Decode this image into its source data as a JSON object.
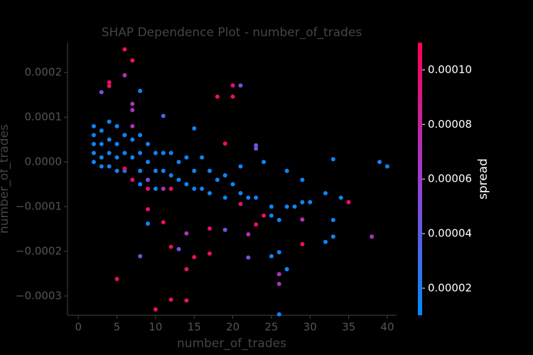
{
  "chart_data": {
    "type": "scatter",
    "title": "SHAP Dependence Plot - number_of_trades",
    "x_label": "number_of_trades",
    "y_label": "number_of_trades",
    "colorbar_label": "spread",
    "colormap": [
      "#008bfb",
      "#9b3fd0",
      "#ff0052"
    ],
    "xlim": [
      -1.4,
      41.2
    ],
    "ylim": [
      -0.000343,
      0.000267
    ],
    "clim": [
      1.01e-05,
      0.00011
    ],
    "xticks": [
      0,
      5,
      10,
      15,
      20,
      25,
      30,
      35,
      40
    ],
    "yticks": [
      {
        "value": 0.0002,
        "label": "0.0002"
      },
      {
        "value": 0.0001,
        "label": "0.0001"
      },
      {
        "value": 0,
        "label": "0.0000"
      },
      {
        "value": -0.0001,
        "label": "−0.0001"
      },
      {
        "value": -0.0002,
        "label": "−0.0002"
      },
      {
        "value": -0.0003,
        "label": "−0.0003"
      }
    ],
    "cticks": [
      {
        "value": 2e-05,
        "label": "0.00002"
      },
      {
        "value": 4e-05,
        "label": "0.00004"
      },
      {
        "value": 6e-05,
        "label": "0.00006"
      },
      {
        "value": 8e-05,
        "label": "0.00008"
      },
      {
        "value": 0.0001,
        "label": "0.00010"
      }
    ],
    "x": [
      6,
      7,
      6,
      4,
      4,
      3,
      8,
      7,
      11,
      7,
      18,
      20,
      21,
      20,
      15,
      19,
      23,
      23,
      33,
      39,
      40,
      2,
      2,
      2,
      2,
      2,
      3,
      3,
      3,
      3,
      4,
      4,
      4,
      4,
      5,
      5,
      5,
      5,
      6,
      6,
      6,
      6,
      7,
      7,
      7,
      7,
      8,
      8,
      8,
      8,
      9,
      9,
      9,
      9,
      10,
      10,
      10,
      11,
      11,
      11,
      12,
      12,
      12,
      13,
      13,
      14,
      14,
      15,
      15,
      16,
      16,
      17,
      17,
      18,
      19,
      19,
      20,
      21,
      21,
      22,
      23,
      24,
      24,
      25,
      25,
      26,
      27,
      27,
      28,
      29,
      29,
      30,
      32,
      33,
      34,
      35,
      5,
      8,
      9,
      9,
      11,
      12,
      13,
      10,
      12,
      14,
      14,
      14,
      15,
      17,
      17,
      19,
      22,
      22,
      25,
      26,
      26,
      26,
      26,
      27,
      29,
      29,
      32,
      33,
      38,
      23,
      21
    ],
    "values": [
      0.000252,
      0.000227,
      0.000194,
      0.000178,
      0.00017,
      0.000156,
      0.000159,
      0.00013,
      0.000103,
      0.000116,
      0.000146,
      0.000171,
      0.000171,
      0.000146,
      7.5e-05,
      4.1e-05,
      3.7e-05,
      3e-05,
      6e-06,
      0,
      -1e-05,
      8e-05,
      6e-05,
      4e-05,
      2e-05,
      0,
      7e-05,
      4e-05,
      1e-05,
      -1e-05,
      9e-05,
      5e-05,
      2e-05,
      -1e-05,
      8e-05,
      4e-05,
      1e-05,
      -2e-05,
      6e-05,
      2e-05,
      -2e-05,
      -1.5e-05,
      8e-05,
      5e-05,
      1e-05,
      -4e-05,
      6e-05,
      2e-05,
      -2e-05,
      -5e-05,
      4e-05,
      0,
      -4e-05,
      -6e-05,
      2e-05,
      -2e-05,
      -6e-05,
      2e-05,
      -2e-05,
      -6e-05,
      2e-05,
      -3e-05,
      -6e-05,
      0,
      -4e-05,
      1e-05,
      -5e-05,
      -2e-05,
      -6e-05,
      1e-05,
      -6e-05,
      -2e-05,
      -7e-05,
      -4e-05,
      -3e-05,
      -8e-05,
      -5e-05,
      -1e-05,
      -7e-05,
      -8e-05,
      -8e-05,
      -0.00012,
      0,
      -0.0001,
      -0.00012,
      -0.00013,
      -2e-05,
      -0.0001,
      -0.0001,
      -4e-05,
      -9e-05,
      -9e-05,
      -7e-05,
      -0.00013,
      -8e-05,
      -9e-05,
      -0.000262,
      -0.000211,
      -0.000138,
      -0.000106,
      -0.000135,
      -0.00019,
      -0.000195,
      -0.00033,
      -0.000308,
      -0.00031,
      -0.00024,
      -0.00016,
      -0.000213,
      -0.000205,
      -0.000149,
      -0.000152,
      -0.000162,
      -0.000214,
      -0.000211,
      -0.000202,
      -0.000251,
      -0.000273,
      -0.000341,
      -0.00024,
      -0.000184,
      -0.000129,
      -0.000179,
      -0.000167,
      -0.000167,
      -0.00014,
      -9.4e-05
    ],
    "color_values": [
      0.0001,
      0.0001,
      7e-05,
      0.0001,
      0.0001,
      5e-05,
      1.5e-05,
      7e-05,
      3e-05,
      7e-05,
      0.0001,
      0.0001,
      5e-05,
      0.0001,
      1.5e-05,
      0.0001,
      5e-05,
      5e-05,
      1.5e-05,
      2e-05,
      1.5e-05,
      1.5e-05,
      1.5e-05,
      1.5e-05,
      1.5e-05,
      1.5e-05,
      1.5e-05,
      1.5e-05,
      1.5e-05,
      1.5e-05,
      1.5e-05,
      1.5e-05,
      1.5e-05,
      1.5e-05,
      1.5e-05,
      1.5e-05,
      1.5e-05,
      1.5e-05,
      1.5e-05,
      1.5e-05,
      1.5e-05,
      0.0001,
      7e-05,
      1.5e-05,
      1.5e-05,
      0.0001,
      1.5e-05,
      1.5e-05,
      1.5e-05,
      1.5e-05,
      1.5e-05,
      1.5e-05,
      5e-05,
      0.0001,
      1.5e-05,
      1.5e-05,
      1.5e-05,
      1.5e-05,
      1.5e-05,
      7e-05,
      1.5e-05,
      1.5e-05,
      0.0001,
      1.5e-05,
      1.5e-05,
      1.5e-05,
      1.5e-05,
      1.5e-05,
      1.5e-05,
      1.5e-05,
      1.5e-05,
      1.5e-05,
      1.5e-05,
      1.5e-05,
      1.5e-05,
      1.5e-05,
      1.5e-05,
      1.5e-05,
      1.5e-05,
      1.5e-05,
      1.5e-05,
      0.0001,
      1.5e-05,
      1.5e-05,
      1.5e-05,
      1.5e-05,
      1.5e-05,
      1.5e-05,
      1.5e-05,
      1.5e-05,
      1.5e-05,
      1.5e-05,
      1.5e-05,
      1.5e-05,
      1.5e-05,
      0.0001,
      0.0001,
      5e-05,
      1.5e-05,
      0.0001,
      0.0001,
      0.0001,
      5e-05,
      0.0001,
      0.0001,
      0.0001,
      0.0001,
      7e-05,
      0.0001,
      0.0001,
      0.0001,
      5e-05,
      7e-05,
      5e-05,
      1.5e-05,
      1.5e-05,
      7e-05,
      7e-05,
      1.5e-05,
      1.5e-05,
      0.0001,
      7e-05,
      1.5e-05,
      1.5e-05,
      7e-05,
      0.0001,
      0.0001
    ]
  }
}
